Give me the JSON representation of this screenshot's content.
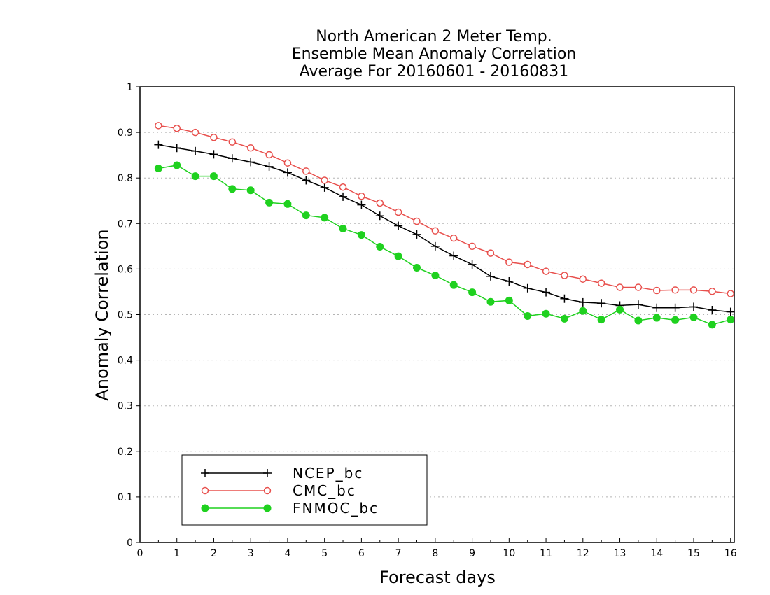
{
  "chart_data": {
    "type": "line",
    "title": [
      "North American 2 Meter Temp.",
      "Ensemble Mean Anomaly Correlation",
      "Average For 20160601 - 20160831"
    ],
    "xlabel": "Forecast days",
    "ylabel": "Anomaly Correlation",
    "xlim": [
      0,
      16.1
    ],
    "ylim": [
      0,
      1
    ],
    "xticks": [
      0,
      1,
      2,
      3,
      4,
      5,
      6,
      7,
      8,
      9,
      10,
      11,
      12,
      13,
      14,
      15,
      16
    ],
    "yticks": [
      0,
      0.1,
      0.2,
      0.3,
      0.4,
      0.5,
      0.6,
      0.7,
      0.8,
      0.9,
      1
    ],
    "grid": true,
    "legend_position": "bottom-left",
    "x": [
      0.5,
      1,
      1.5,
      2,
      2.5,
      3,
      3.5,
      4,
      4.5,
      5,
      5.5,
      6,
      6.5,
      7,
      7.5,
      8,
      8.5,
      9,
      9.5,
      10,
      10.5,
      11,
      11.5,
      12,
      12.5,
      13,
      13.5,
      14,
      14.5,
      15,
      15.5,
      16
    ],
    "series": [
      {
        "name": "NCEP_bc",
        "color": "#000000",
        "marker": "plus",
        "values": [
          0.873,
          0.866,
          0.859,
          0.852,
          0.843,
          0.835,
          0.825,
          0.812,
          0.795,
          0.779,
          0.759,
          0.741,
          0.717,
          0.695,
          0.676,
          0.65,
          0.629,
          0.61,
          0.584,
          0.573,
          0.558,
          0.549,
          0.535,
          0.527,
          0.525,
          0.52,
          0.522,
          0.515,
          0.515,
          0.517,
          0.51,
          0.506
        ]
      },
      {
        "name": "CMC_bc",
        "color": "#e8504d",
        "marker": "open-circle",
        "values": [
          0.915,
          0.909,
          0.9,
          0.889,
          0.879,
          0.866,
          0.851,
          0.833,
          0.815,
          0.795,
          0.78,
          0.76,
          0.745,
          0.725,
          0.705,
          0.684,
          0.668,
          0.65,
          0.635,
          0.615,
          0.61,
          0.595,
          0.586,
          0.578,
          0.569,
          0.56,
          0.56,
          0.553,
          0.554,
          0.554,
          0.551,
          0.546
        ]
      },
      {
        "name": "FNMOC_bc",
        "color": "#1fd11f",
        "marker": "filled-circle",
        "values": [
          0.821,
          0.828,
          0.804,
          0.804,
          0.776,
          0.773,
          0.746,
          0.743,
          0.718,
          0.713,
          0.689,
          0.675,
          0.649,
          0.628,
          0.603,
          0.586,
          0.565,
          0.549,
          0.528,
          0.531,
          0.497,
          0.502,
          0.491,
          0.508,
          0.489,
          0.511,
          0.487,
          0.493,
          0.488,
          0.494,
          0.478,
          0.489
        ]
      }
    ]
  }
}
